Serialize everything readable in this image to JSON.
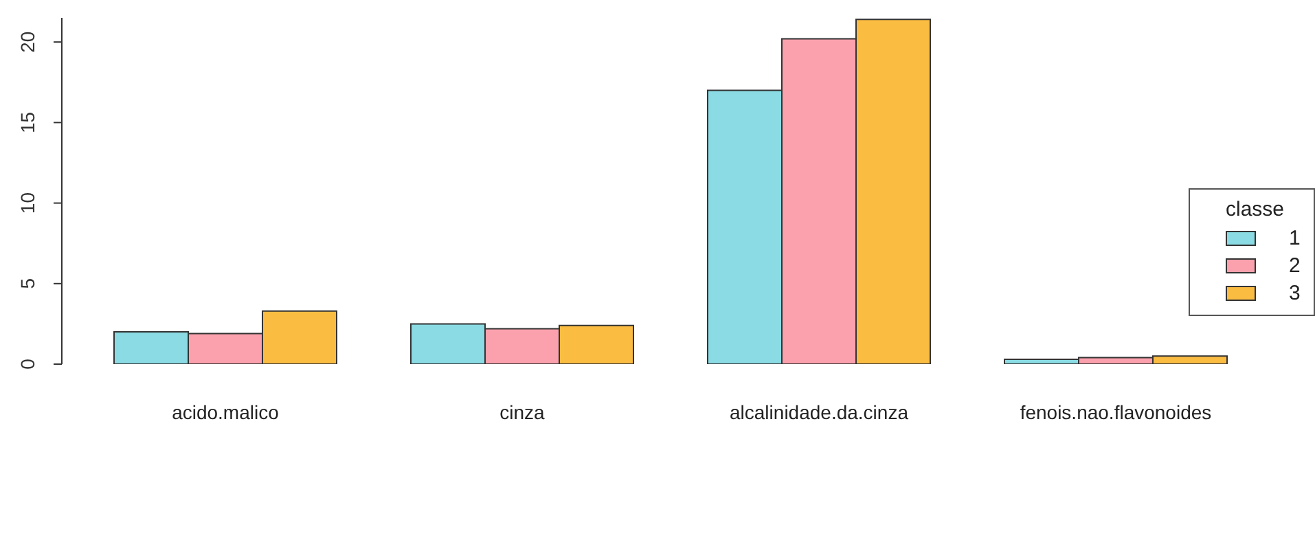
{
  "chart_data": {
    "type": "bar",
    "categories": [
      "acido.malico",
      "cinza",
      "alcalinidade.da.cinza",
      "fenois.nao.flavonoides"
    ],
    "series": [
      {
        "name": "1",
        "color": "#8adbe3",
        "values": [
          2.0,
          2.5,
          17.0,
          0.3
        ]
      },
      {
        "name": "2",
        "color": "#fba1ad",
        "values": [
          1.9,
          2.2,
          20.2,
          0.4
        ]
      },
      {
        "name": "3",
        "color": "#fbbc42",
        "values": [
          3.3,
          2.4,
          21.4,
          0.5
        ]
      }
    ],
    "ylim": [
      0,
      21.5
    ],
    "yticks": [
      0,
      5,
      10,
      15,
      20
    ],
    "legend": "right",
    "legend_title": "classe",
    "grid": false
  }
}
